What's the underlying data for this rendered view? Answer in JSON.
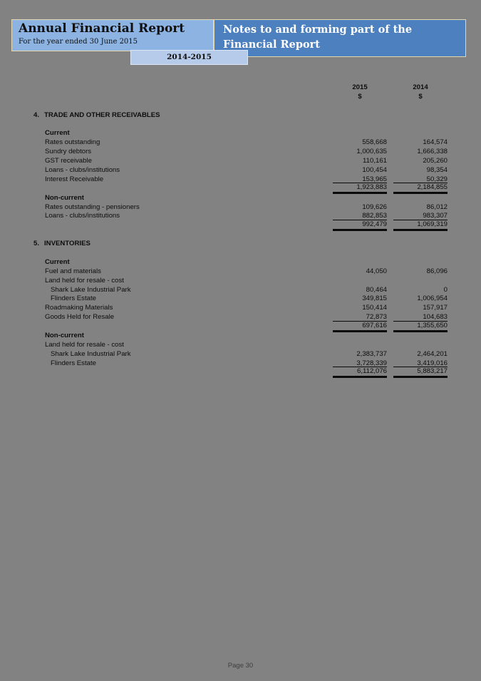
{
  "header": {
    "title": "Annual Financial Report",
    "subtitle": "For the year ended 30 June 2015",
    "banner": "Notes to and forming part of the Financial Report",
    "tab_label": "2014-2015"
  },
  "colors": {
    "page_bg": "#828282",
    "header_left_bg": "#8db3e2",
    "header_right_bg": "#4d80bf",
    "tab_bg": "#b6cbe9",
    "box_border": "#e5d7ae"
  },
  "table": {
    "col_headers": [
      {
        "year": "2015",
        "unit": "$"
      },
      {
        "year": "2014",
        "unit": "$"
      }
    ],
    "sections": [
      {
        "number": "4.",
        "title": "TRADE AND OTHER RECEIVABLES",
        "groups": [
          {
            "heading": "Current",
            "rows": [
              {
                "label": "Rates outstanding",
                "v2015": "558,668",
                "v2014": "164,574"
              },
              {
                "label": "Sundry debtors",
                "v2015": "1,000,635",
                "v2014": "1,666,338"
              },
              {
                "label": "GST receivable",
                "v2015": "110,161",
                "v2014": "205,260"
              },
              {
                "label": "Loans - clubs/institutions",
                "v2015": "100,454",
                "v2014": "98,354"
              },
              {
                "label": "Interest Receivable",
                "v2015": "153,965",
                "v2014": "50,329"
              }
            ],
            "total": {
              "v2015": "1,923,883",
              "v2014": "2,184,855"
            }
          },
          {
            "heading": "Non-current",
            "rows": [
              {
                "label": "Rates outstanding - pensioners",
                "v2015": "109,626",
                "v2014": "86,012"
              },
              {
                "label": "Loans - clubs/institutions",
                "v2015": "882,853",
                "v2014": "983,307"
              }
            ],
            "total": {
              "v2015": "992,479",
              "v2014": "1,069,319"
            }
          }
        ]
      },
      {
        "number": "5.",
        "title": "INVENTORIES",
        "groups": [
          {
            "heading": "Current",
            "rows": [
              {
                "label": "Fuel and materials",
                "v2015": "44,050",
                "v2014": "86,096"
              },
              {
                "label": "Land held for resale - cost",
                "v2015": "",
                "v2014": ""
              },
              {
                "label": "Shark Lake Industrial Park",
                "indent": 2,
                "v2015": "80,464",
                "v2014": "0"
              },
              {
                "label": "Flinders Estate",
                "indent": 2,
                "v2015": "349,815",
                "v2014": "1,006,954"
              },
              {
                "label": "Roadmaking Materials",
                "v2015": "150,414",
                "v2014": "157,917"
              },
              {
                "label": "Goods Held for Resale",
                "v2015": "72,873",
                "v2014": "104,683"
              }
            ],
            "total": {
              "v2015": "697,616",
              "v2014": "1,355,650"
            }
          },
          {
            "heading": "Non-current",
            "rows": [
              {
                "label": "Land held for resale - cost",
                "v2015": "",
                "v2014": ""
              },
              {
                "label": "Shark Lake Industrial Park",
                "indent": 2,
                "v2015": "2,383,737",
                "v2014": "2,464,201"
              },
              {
                "label": "Flinders Estate",
                "indent": 2,
                "v2015": "3,728,339",
                "v2014": "3,419,016"
              }
            ],
            "total": {
              "v2015": "6,112,076",
              "v2014": "5,883,217"
            }
          }
        ]
      }
    ]
  },
  "footer": {
    "page_label": "Page 30"
  }
}
